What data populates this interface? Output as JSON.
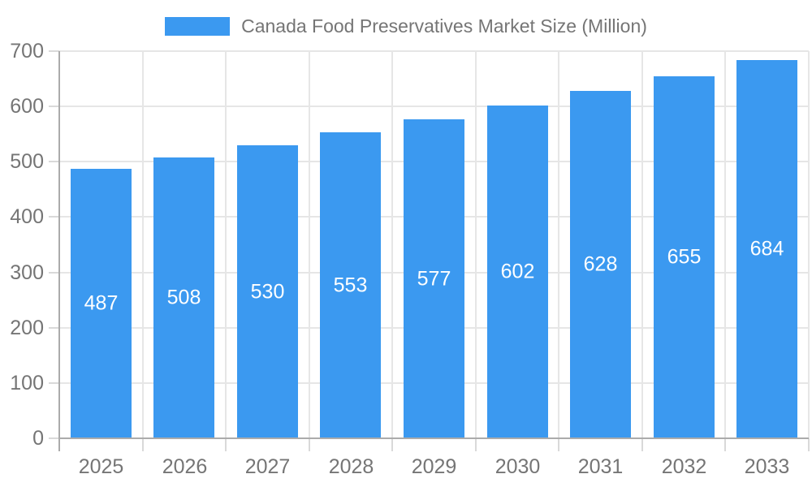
{
  "chart_data": {
    "type": "bar",
    "title": "Canada Food Preservatives Market Size (Million)",
    "legend": [
      "Canada Food Preservatives Market Size (Million)"
    ],
    "legend_position": "top",
    "categories": [
      "2025",
      "2026",
      "2027",
      "2028",
      "2029",
      "2030",
      "2031",
      "2032",
      "2033"
    ],
    "values": [
      487,
      508,
      530,
      553,
      577,
      602,
      628,
      655,
      684
    ],
    "xlabel": "",
    "ylabel": "",
    "ylim": [
      0,
      700
    ],
    "yticks": [
      0,
      100,
      200,
      300,
      400,
      500,
      600,
      700
    ],
    "grid": true,
    "value_labels": "centered-white-inside-bars",
    "colors": {
      "bar": "#3b99f0",
      "value_text": "#ffffff",
      "axis_text": "#757575",
      "gridline": "#e6e6e6",
      "tick": "#d9d9d9",
      "axis_line": "#ababab",
      "background": "#ffffff"
    }
  }
}
